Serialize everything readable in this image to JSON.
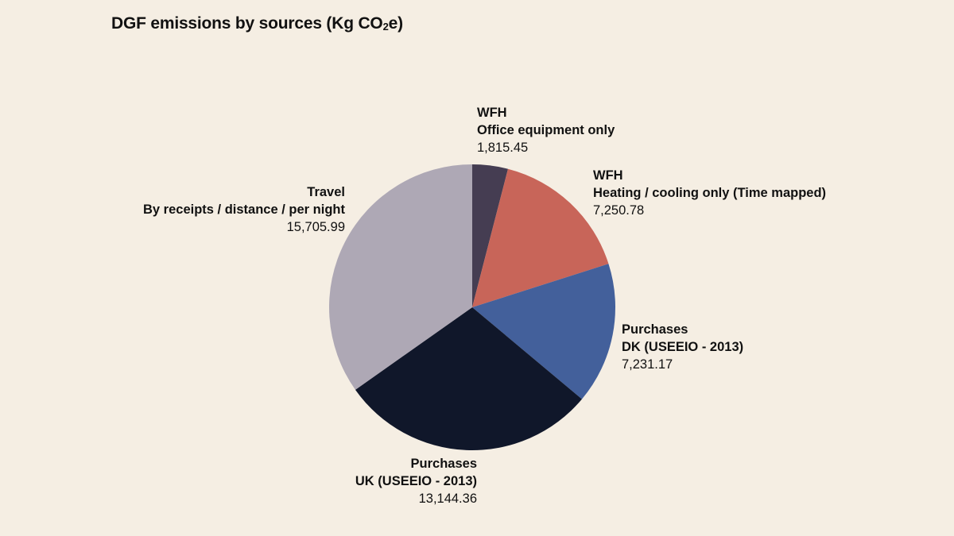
{
  "title": {
    "main": "DGF emissions by sources (Kg CO",
    "sub": "2",
    "end": "e)"
  },
  "chart_data": {
    "type": "pie",
    "title": "DGF emissions by sources (Kg CO₂e)",
    "start_angle_deg": 0,
    "direction": "clockwise",
    "legend": "none",
    "slices": [
      {
        "line1": "WFH",
        "line2": "Office equipment only",
        "value": 1815.45,
        "value_label": "1,815.45",
        "color": "#453d52"
      },
      {
        "line1": "WFH",
        "line2": "Heating / cooling only (Time mapped)",
        "value": 7250.78,
        "value_label": "7,250.78",
        "color": "#c86559"
      },
      {
        "line1": "Purchases",
        "line2": "DK (USEEIO - 2013)",
        "value": 7231.17,
        "value_label": "7,231.17",
        "color": "#43609b"
      },
      {
        "line1": "Purchases",
        "line2": "UK (USEEIO - 2013)",
        "value": 13144.36,
        "value_label": "13,144.36",
        "color": "#10172a"
      },
      {
        "line1": "Travel",
        "line2": "By receipts / distance / per night",
        "value": 15705.99,
        "value_label": "15,705.99",
        "color": "#aea8b5"
      }
    ]
  }
}
